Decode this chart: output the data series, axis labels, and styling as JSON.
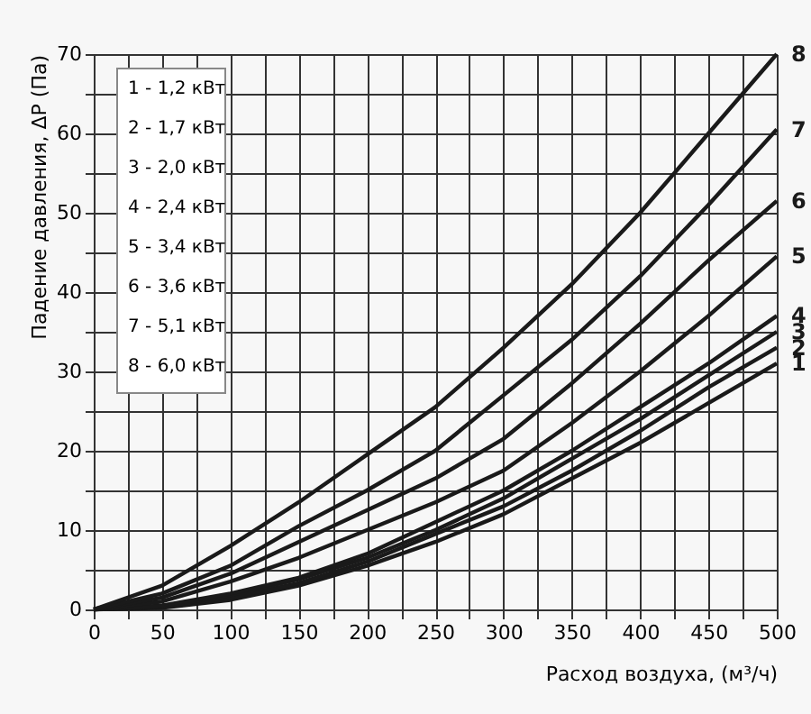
{
  "chart_data": {
    "type": "line",
    "xlabel": "Расход воздуха, (м³/ч)",
    "ylabel": "Падение давления, ΔP (Па)",
    "x": [
      0,
      50,
      100,
      150,
      200,
      250,
      300,
      350,
      400,
      450,
      500
    ],
    "series": [
      {
        "name": "1",
        "color": "#1a1a1a",
        "values": [
          0,
          0.2,
          1.2,
          3,
          5.5,
          8.5,
          12,
          16.5,
          21,
          26,
          31
        ]
      },
      {
        "name": "2",
        "color": "#1a1a1a",
        "values": [
          0,
          0.3,
          1.5,
          3.3,
          6,
          9.5,
          13,
          17.5,
          22.5,
          28,
          33
        ]
      },
      {
        "name": "3",
        "color": "#1a1a1a",
        "values": [
          0,
          0.4,
          1.8,
          3.8,
          6.5,
          10,
          14,
          19,
          24,
          29.5,
          35
        ]
      },
      {
        "name": "4",
        "color": "#1a1a1a",
        "values": [
          0,
          0.5,
          2,
          4,
          7,
          11,
          15,
          20,
          25.5,
          31,
          37
        ]
      },
      {
        "name": "5",
        "color": "#1a1a1a",
        "values": [
          0,
          1,
          3.5,
          6.5,
          10,
          13.5,
          17.5,
          23.5,
          30,
          37,
          44.5
        ]
      },
      {
        "name": "6",
        "color": "#1a1a1a",
        "values": [
          0,
          1.5,
          4.5,
          8.5,
          12.5,
          16.5,
          21.5,
          28.5,
          36,
          44,
          51.5
        ]
      },
      {
        "name": "7",
        "color": "#1a1a1a",
        "values": [
          0,
          2,
          5.5,
          10.5,
          15,
          20,
          27,
          34,
          42,
          51,
          60.5
        ]
      },
      {
        "name": "8",
        "color": "#1a1a1a",
        "values": [
          0,
          3,
          8,
          13.5,
          19.5,
          25.5,
          33,
          41,
          50,
          60,
          70
        ]
      }
    ],
    "xlim": [
      0,
      500
    ],
    "ylim": [
      0,
      70
    ],
    "xticks": [
      0,
      {
        "value": 25,
        "label": null
      },
      50,
      {
        "value": 75,
        "label": null
      },
      100,
      {
        "value": 125,
        "label": null
      },
      150,
      {
        "value": 175,
        "label": null
      },
      200,
      {
        "value": 225,
        "label": null
      },
      250,
      {
        "value": 275,
        "label": null
      },
      300,
      {
        "value": 325,
        "label": null
      },
      350,
      {
        "value": 375,
        "label": null
      },
      400,
      {
        "value": 425,
        "label": null
      },
      450,
      {
        "value": 475,
        "label": null
      },
      500
    ],
    "yticks": [
      0,
      {
        "value": 5,
        "label": null
      },
      10,
      {
        "value": 15,
        "label": null
      },
      20,
      {
        "value": 25,
        "label": null
      },
      30,
      {
        "value": 35,
        "label": null
      },
      40,
      {
        "value": 45,
        "label": null
      },
      50,
      {
        "value": 55,
        "label": null
      },
      60,
      {
        "value": 65,
        "label": null
      },
      70
    ],
    "grid": true,
    "marker": "none",
    "line_style": "solid",
    "annotations": [
      "1 - 1,2 кВт",
      "2 - 1,7 кВт",
      "3 - 2,0 кВт",
      "4 - 2,4 кВт",
      "5 - 3,4 кВт",
      "6 - 3,6 кВт",
      "7 - 5,1 кВт",
      "8 - 6,0 кВт"
    ]
  }
}
